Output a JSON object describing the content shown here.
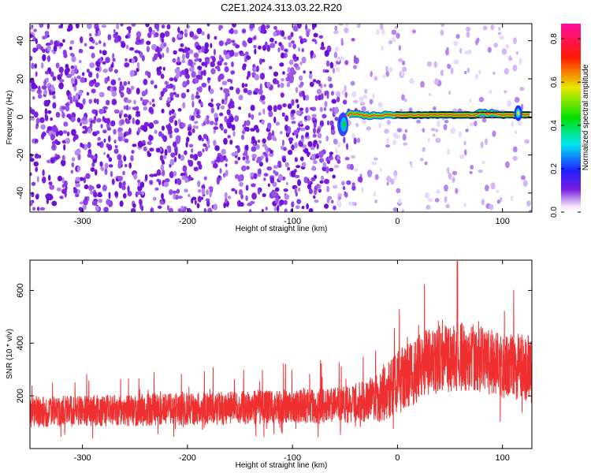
{
  "title": "C2E1.2024.313.03.22.R20",
  "colors": {
    "snr_line": "#f03030",
    "spectro_purple": "#7a1ee0",
    "background": "#ffffff"
  },
  "chart_data": [
    {
      "type": "heatmap",
      "title": "C2E1.2024.313.03.22.R20",
      "xlabel": "Height of straight line (km)",
      "ylabel": "Frequency (Hz)",
      "xlim": [
        -350,
        128
      ],
      "ylim": [
        -50,
        49
      ],
      "x_ticks": [
        -300,
        -200,
        -100,
        0,
        100
      ],
      "x_tick_labels": [
        "-300",
        "-200",
        "-100",
        "0",
        "100"
      ],
      "y_ticks": [
        -40,
        -20,
        0,
        20,
        40
      ],
      "y_tick_labels": [
        "-40",
        "-20",
        "0",
        "20",
        "40"
      ],
      "colorbar": {
        "label": "Normalized spectral amplitude",
        "range": [
          0,
          0.87
        ],
        "ticks": [
          0,
          0.2,
          0.4,
          0.6,
          0.8
        ],
        "tick_labels": [
          "0.0",
          "0.2",
          "0.4",
          "0.6",
          "0.8"
        ],
        "colormap": "rainbow (white-purple-blue-cyan-green-yellow-red-magenta)"
      },
      "features": {
        "noise_region": {
          "x_range": [
            -350,
            -55
          ],
          "amplitude": 0.05,
          "spans_all_frequencies": true
        },
        "fading_noise_region": {
          "x_range": [
            -55,
            128
          ],
          "amplitude": 0.02
        },
        "signal_line": {
          "x_range": [
            -55,
            128
          ],
          "frequency_hz": 1,
          "amplitude": 0.8
        },
        "signal_onset_blob": {
          "x": -52,
          "frequency_range": [
            -12,
            4
          ]
        },
        "edge_blob": {
          "x": 115,
          "frequency_range": [
            -4,
            8
          ]
        }
      },
      "grid": false
    },
    {
      "type": "line",
      "xlabel": "Height of straight line (km)",
      "ylabel": "SNR (10 * v/v)",
      "xlim": [
        -350,
        128
      ],
      "ylim": [
        0,
        715
      ],
      "x_ticks": [
        -300,
        -200,
        -100,
        0,
        100
      ],
      "x_tick_labels": [
        "-300",
        "-200",
        "-100",
        "0",
        "100"
      ],
      "y_ticks": [
        200,
        400,
        600
      ],
      "y_tick_labels": [
        "200",
        "400",
        "600"
      ],
      "series": [
        {
          "color": "#f03030",
          "profile_x": [
            -350,
            -300,
            -200,
            -100,
            -50,
            -30,
            -15,
            0,
            30,
            60,
            90,
            128
          ],
          "profile_mean": [
            140,
            142,
            150,
            160,
            165,
            180,
            200,
            250,
            330,
            350,
            330,
            300
          ],
          "profile_halfwidth": [
            60,
            60,
            62,
            65,
            70,
            80,
            100,
            120,
            130,
            130,
            130,
            130
          ],
          "approx_min": 10,
          "approx_max": 710,
          "peak_x": 57
        }
      ],
      "grid": false
    }
  ]
}
